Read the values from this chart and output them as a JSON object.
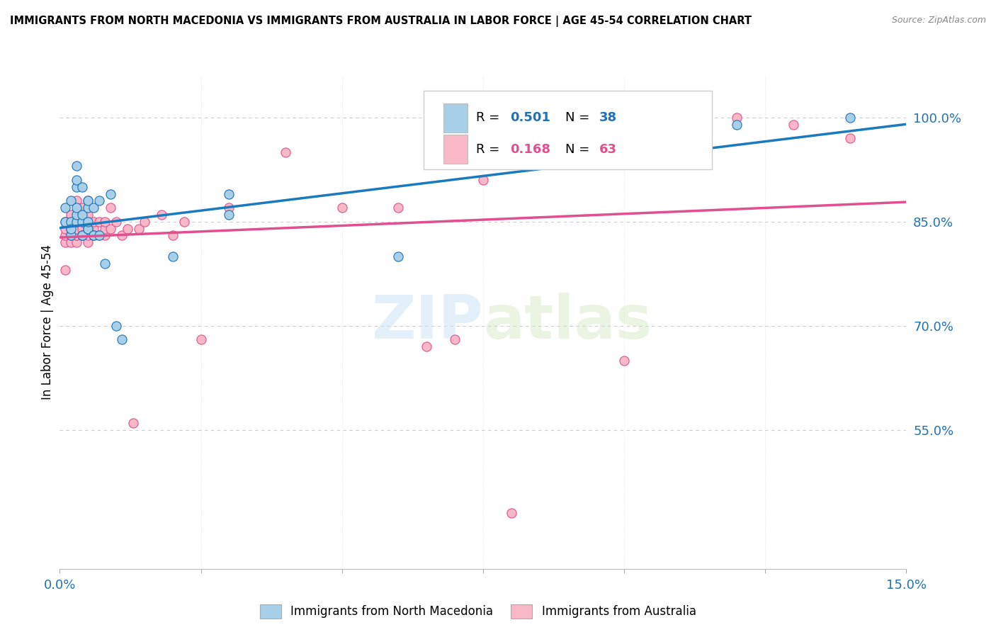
{
  "title": "IMMIGRANTS FROM NORTH MACEDONIA VS IMMIGRANTS FROM AUSTRALIA IN LABOR FORCE | AGE 45-54 CORRELATION CHART",
  "source": "Source: ZipAtlas.com",
  "ylabel": "In Labor Force | Age 45-54",
  "xmin": 0.0,
  "xmax": 0.15,
  "ymin": 0.35,
  "ymax": 1.06,
  "color_blue": "#a8cfe8",
  "color_pink": "#f9b8c8",
  "color_blue_line": "#1a7abf",
  "color_pink_line": "#e05090",
  "color_blue_dark": "#2171b5",
  "color_pink_dark": "#e05090",
  "label_blue": "Immigrants from North Macedonia",
  "label_pink": "Immigrants from Australia",
  "blue_x": [
    0.001,
    0.001,
    0.002,
    0.002,
    0.002,
    0.002,
    0.003,
    0.003,
    0.003,
    0.003,
    0.003,
    0.003,
    0.004,
    0.004,
    0.004,
    0.004,
    0.004,
    0.005,
    0.005,
    0.005,
    0.005,
    0.005,
    0.006,
    0.006,
    0.006,
    0.007,
    0.007,
    0.008,
    0.009,
    0.01,
    0.011,
    0.02,
    0.03,
    0.03,
    0.06,
    0.1,
    0.12,
    0.14
  ],
  "blue_y": [
    0.85,
    0.87,
    0.85,
    0.83,
    0.84,
    0.88,
    0.85,
    0.86,
    0.87,
    0.9,
    0.91,
    0.93,
    0.83,
    0.83,
    0.85,
    0.86,
    0.9,
    0.84,
    0.84,
    0.85,
    0.87,
    0.88,
    0.83,
    0.83,
    0.87,
    0.83,
    0.88,
    0.79,
    0.89,
    0.7,
    0.68,
    0.8,
    0.86,
    0.89,
    0.8,
    0.97,
    0.99,
    1.0
  ],
  "pink_x": [
    0.001,
    0.001,
    0.001,
    0.001,
    0.001,
    0.002,
    0.002,
    0.002,
    0.002,
    0.002,
    0.002,
    0.002,
    0.003,
    0.003,
    0.003,
    0.003,
    0.003,
    0.003,
    0.003,
    0.004,
    0.004,
    0.004,
    0.004,
    0.004,
    0.005,
    0.005,
    0.005,
    0.005,
    0.005,
    0.006,
    0.006,
    0.006,
    0.007,
    0.007,
    0.008,
    0.008,
    0.008,
    0.009,
    0.009,
    0.01,
    0.011,
    0.012,
    0.013,
    0.014,
    0.015,
    0.018,
    0.02,
    0.022,
    0.025,
    0.03,
    0.04,
    0.05,
    0.06,
    0.065,
    0.07,
    0.075,
    0.08,
    0.09,
    0.1,
    0.11,
    0.12,
    0.13,
    0.14
  ],
  "pink_y": [
    0.78,
    0.82,
    0.83,
    0.84,
    0.85,
    0.82,
    0.83,
    0.84,
    0.84,
    0.85,
    0.85,
    0.86,
    0.82,
    0.83,
    0.83,
    0.84,
    0.84,
    0.85,
    0.88,
    0.83,
    0.83,
    0.84,
    0.85,
    0.87,
    0.82,
    0.83,
    0.85,
    0.86,
    0.88,
    0.83,
    0.84,
    0.85,
    0.83,
    0.85,
    0.83,
    0.84,
    0.85,
    0.84,
    0.87,
    0.85,
    0.83,
    0.84,
    0.56,
    0.84,
    0.85,
    0.86,
    0.83,
    0.85,
    0.68,
    0.87,
    0.95,
    0.87,
    0.87,
    0.67,
    0.68,
    0.91,
    0.43,
    0.99,
    0.65,
    0.99,
    1.0,
    0.99,
    0.97
  ]
}
